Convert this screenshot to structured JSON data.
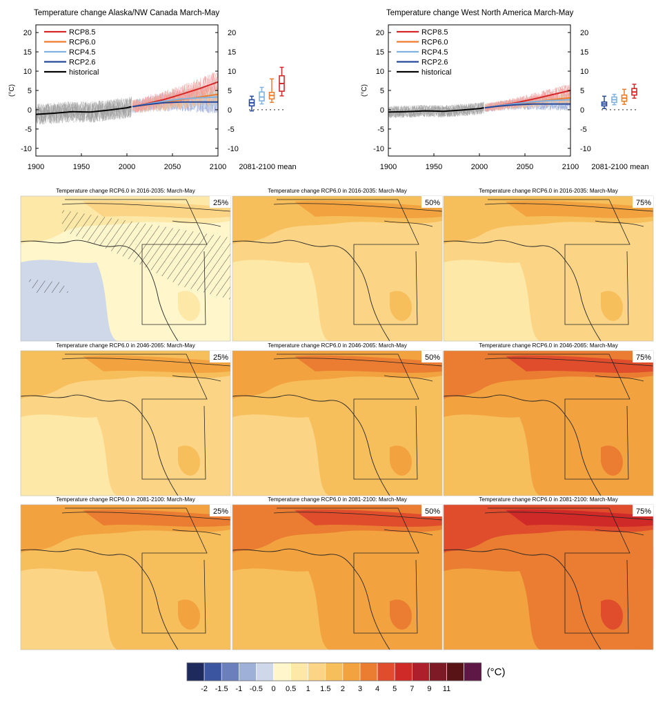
{
  "chart_data": [
    {
      "type": "line",
      "title": "Temperature change Alaska/NW Canada March-May",
      "ylabel": "(°C)",
      "xlim": [
        1900,
        2100
      ],
      "ylim": [
        -12,
        22
      ],
      "x_ticks": [
        1900,
        1950,
        2000,
        2050,
        2100
      ],
      "y_ticks": [
        -10,
        -5,
        0,
        5,
        10,
        15,
        20
      ],
      "grid": false,
      "legend_position": "top-left",
      "series": [
        {
          "name": "RCP8.5",
          "color": "#d62728",
          "x": [
            2006,
            2020,
            2040,
            2060,
            2080,
            2100
          ],
          "values": [
            0.8,
            1.5,
            2.6,
            4.0,
            5.5,
            7.2
          ]
        },
        {
          "name": "RCP6.0",
          "color": "#f07b2a",
          "x": [
            2006,
            2020,
            2040,
            2060,
            2080,
            2100
          ],
          "values": [
            0.8,
            1.2,
            1.9,
            2.6,
            3.3,
            4.0
          ]
        },
        {
          "name": "RCP4.5",
          "color": "#7fb2e0",
          "x": [
            2006,
            2020,
            2040,
            2060,
            2080,
            2100
          ],
          "values": [
            0.8,
            1.4,
            2.2,
            2.8,
            3.1,
            3.3
          ]
        },
        {
          "name": "RCP2.6",
          "color": "#26489a",
          "x": [
            2006,
            2020,
            2040,
            2060,
            2080,
            2100
          ],
          "values": [
            0.8,
            1.3,
            1.8,
            2.0,
            2.0,
            2.0
          ]
        },
        {
          "name": "historical",
          "color": "#000000",
          "x": [
            1900,
            1920,
            1940,
            1960,
            1980,
            2000,
            2005
          ],
          "values": [
            -1.2,
            -0.9,
            -0.5,
            -0.6,
            -0.1,
            0.5,
            0.8
          ]
        }
      ],
      "boxplot": {
        "label": "2081-2100 mean",
        "boxes": [
          {
            "name": "RCP2.6",
            "color": "#26489a",
            "min": -0.3,
            "q1": 1.0,
            "median": 1.8,
            "q3": 2.6,
            "max": 3.5
          },
          {
            "name": "RCP4.5",
            "color": "#7fb2e0",
            "min": 1.5,
            "q1": 2.3,
            "median": 3.3,
            "q3": 4.6,
            "max": 5.8
          },
          {
            "name": "RCP6.0",
            "color": "#f07b2a",
            "min": 1.9,
            "q1": 2.8,
            "median": 3.7,
            "q3": 4.5,
            "max": 8.0
          },
          {
            "name": "RCP8.5",
            "color": "#d62728",
            "min": 3.6,
            "q1": 4.8,
            "median": 6.8,
            "q3": 8.8,
            "max": 11.0
          }
        ]
      }
    },
    {
      "type": "line",
      "title": "Temperature change West North America March-May",
      "ylabel": "(°C)",
      "xlim": [
        1900,
        2100
      ],
      "ylim": [
        -12,
        22
      ],
      "x_ticks": [
        1900,
        1950,
        2000,
        2050,
        2100
      ],
      "y_ticks": [
        -10,
        -5,
        0,
        5,
        10,
        15,
        20
      ],
      "grid": false,
      "legend_position": "top-left",
      "series": [
        {
          "name": "RCP8.5",
          "color": "#d62728",
          "x": [
            2006,
            2020,
            2040,
            2060,
            2080,
            2100
          ],
          "values": [
            0.5,
            1.0,
            1.8,
            2.8,
            3.9,
            5.0
          ]
        },
        {
          "name": "RCP6.0",
          "color": "#f07b2a",
          "x": [
            2006,
            2020,
            2040,
            2060,
            2080,
            2100
          ],
          "values": [
            0.5,
            0.9,
            1.4,
            2.0,
            2.6,
            3.1
          ]
        },
        {
          "name": "RCP4.5",
          "color": "#7fb2e0",
          "x": [
            2006,
            2020,
            2040,
            2060,
            2080,
            2100
          ],
          "values": [
            0.5,
            1.0,
            1.6,
            2.1,
            2.4,
            2.6
          ]
        },
        {
          "name": "RCP2.6",
          "color": "#26489a",
          "x": [
            2006,
            2020,
            2040,
            2060,
            2080,
            2100
          ],
          "values": [
            0.5,
            0.9,
            1.3,
            1.5,
            1.5,
            1.5
          ]
        },
        {
          "name": "historical",
          "color": "#000000",
          "x": [
            1900,
            1920,
            1940,
            1960,
            1980,
            2000,
            2005
          ],
          "values": [
            -0.6,
            -0.5,
            -0.3,
            -0.4,
            -0.1,
            0.3,
            0.5
          ]
        }
      ],
      "boxplot": {
        "label": "2081-2100 mean",
        "boxes": [
          {
            "name": "RCP2.6",
            "color": "#26489a",
            "min": 0.3,
            "q1": 1.0,
            "median": 1.5,
            "q3": 2.0,
            "max": 3.5
          },
          {
            "name": "RCP4.5",
            "color": "#7fb2e0",
            "min": 1.3,
            "q1": 1.9,
            "median": 2.6,
            "q3": 3.3,
            "max": 4.0
          },
          {
            "name": "RCP6.0",
            "color": "#f07b2a",
            "min": 1.4,
            "q1": 2.2,
            "median": 3.0,
            "q3": 3.8,
            "max": 5.3
          },
          {
            "name": "RCP8.5",
            "color": "#d62728",
            "min": 3.0,
            "q1": 3.8,
            "median": 4.6,
            "q3": 5.5,
            "max": 6.6
          }
        ]
      }
    },
    {
      "type": "heatmap",
      "description_key": "maps",
      "panels": [
        {
          "title": "Temperature change RCP6.0 in 2016-2035: March-May",
          "percentile": "25%",
          "base_level": 5,
          "hatched": true
        },
        {
          "title": "Temperature change RCP6.0 in 2016-2035: March-May",
          "percentile": "50%",
          "base_level": 7,
          "hatched": false
        },
        {
          "title": "Temperature change RCP6.0 in 2016-2035: March-May",
          "percentile": "75%",
          "base_level": 7,
          "hatched": false
        },
        {
          "title": "Temperature change RCP6.0 in 2046-2065: March-May",
          "percentile": "25%",
          "base_level": 7,
          "hatched": false
        },
        {
          "title": "Temperature change RCP6.0 in 2046-2065: March-May",
          "percentile": "50%",
          "base_level": 8,
          "hatched": false
        },
        {
          "title": "Temperature change RCP6.0 in 2046-2065: March-May",
          "percentile": "75%",
          "base_level": 9,
          "hatched": false
        },
        {
          "title": "Temperature change RCP6.0 in 2081-2100: March-May",
          "percentile": "25%",
          "base_level": 8,
          "hatched": false
        },
        {
          "title": "Temperature change RCP6.0 in 2081-2100: March-May",
          "percentile": "50%",
          "base_level": 9,
          "hatched": false
        },
        {
          "title": "Temperature change RCP6.0 in 2081-2100: March-May",
          "percentile": "75%",
          "base_level": 10,
          "hatched": false
        }
      ],
      "colorbar": {
        "unit": "(°C)",
        "labels": [
          "-2",
          "-1.5",
          "-1",
          "-0.5",
          "0",
          "0.5",
          "1",
          "1.5",
          "2",
          "3",
          "4",
          "5",
          "7",
          "9",
          "11"
        ],
        "colors": [
          "#1f2a5c",
          "#3b55a0",
          "#6a7fbc",
          "#9fb0d8",
          "#cfd8e8",
          "#fff6cc",
          "#fde8a8",
          "#fbd585",
          "#f7bf5c",
          "#f2a33f",
          "#ea7d31",
          "#e04d2c",
          "#cf2a28",
          "#ac1f2b",
          "#7e1a26",
          "#581317",
          "#5e1846"
        ]
      }
    }
  ]
}
